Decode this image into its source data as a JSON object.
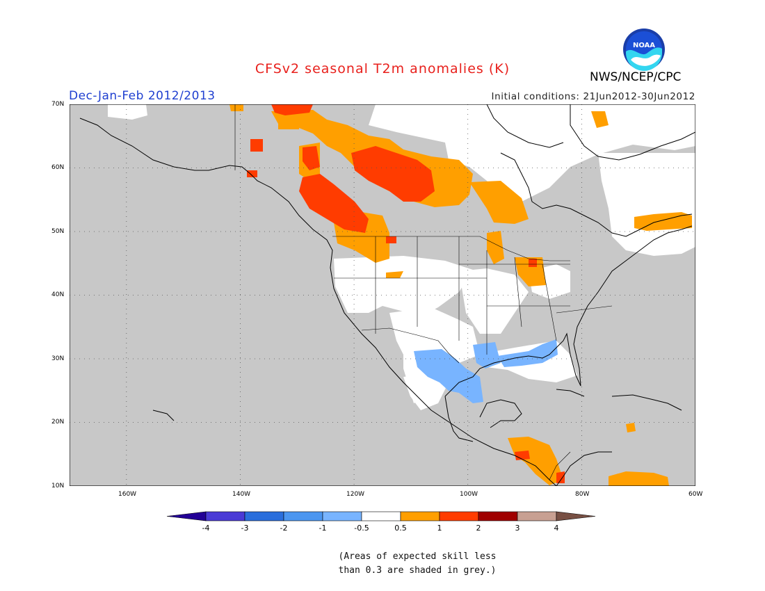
{
  "header": {
    "title": "CFSv2 seasonal T2m anomalies (K)",
    "period": "Dec-Jan-Feb 2012/2013",
    "initial_conditions": "Initial conditions: 21Jun2012-30Jun2012",
    "agency": "NWS/NCEP/CPC",
    "logo_text": "NOAA"
  },
  "map": {
    "lon_range": [
      -170,
      -60
    ],
    "lat_range": [
      10,
      70
    ],
    "lat_labels": [
      "70N",
      "60N",
      "50N",
      "40N",
      "30N",
      "20N",
      "10N"
    ],
    "lon_labels": [
      "160W",
      "140W",
      "120W",
      "100W",
      "80W",
      "60W"
    ],
    "colors": {
      "grey": "#c8c8c8",
      "white": "#ffffff",
      "orange": "#ff9f00",
      "red_orange": "#ff3c00",
      "light_blue": "#78b4ff"
    }
  },
  "colorbar": {
    "labels": [
      "-4",
      "-3",
      "-2",
      "-1",
      "-0.5",
      "0.5",
      "1",
      "2",
      "3",
      "4"
    ],
    "colors": [
      "#230096",
      "#4a3ad6",
      "#2a6edc",
      "#4b96f0",
      "#78b4ff",
      "#ffffff",
      "#ff9f00",
      "#ff3c00",
      "#a00000",
      "#c8a092",
      "#785044"
    ]
  },
  "note": {
    "line1": "(Areas of expected skill less",
    "line2": "than 0.3 are shaded in grey.)"
  }
}
